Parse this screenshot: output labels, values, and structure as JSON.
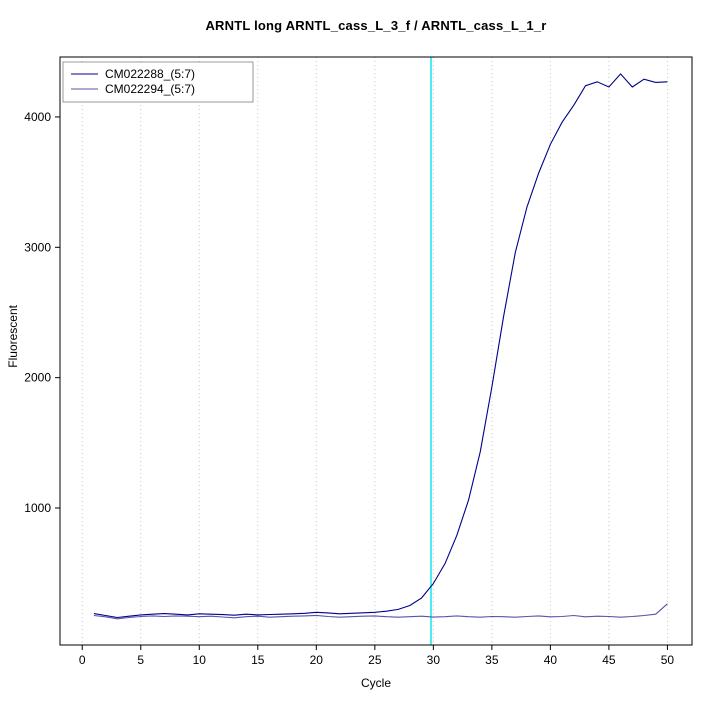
{
  "chart_data": {
    "type": "line",
    "title": "ARNTL long ARNTL_cass_L_3_f / ARNTL_cass_L_1_r",
    "xlabel": "Cycle",
    "ylabel": "Fluorescent",
    "xlim": [
      -1.9,
      52.1
    ],
    "ylim": [
      -51,
      4460
    ],
    "x_ticks": [
      0,
      5,
      10,
      15,
      20,
      25,
      30,
      35,
      40,
      45,
      50
    ],
    "y_ticks": [
      1000,
      2000,
      3000,
      4000
    ],
    "grid": "vertical-dotted",
    "grid_color": "#C8C8C8",
    "legend_position": "top-left",
    "threshold_line": {
      "x": 29.8,
      "color": "#00E5EE"
    },
    "x": [
      1,
      2,
      3,
      4,
      5,
      6,
      7,
      8,
      9,
      10,
      11,
      12,
      13,
      14,
      15,
      16,
      17,
      18,
      19,
      20,
      21,
      22,
      23,
      24,
      25,
      26,
      27,
      28,
      29,
      30,
      31,
      32,
      33,
      34,
      35,
      36,
      37,
      38,
      39,
      40,
      41,
      42,
      43,
      44,
      45,
      46,
      47,
      48,
      49,
      50
    ],
    "series": [
      {
        "name": "CM022288_(5:7)",
        "color": "#00008B",
        "values": [
          190,
          175,
          160,
          170,
          180,
          185,
          190,
          185,
          180,
          188,
          185,
          182,
          178,
          185,
          180,
          183,
          185,
          188,
          192,
          200,
          195,
          188,
          192,
          196,
          200,
          208,
          222,
          252,
          310,
          420,
          575,
          790,
          1060,
          1430,
          1930,
          2470,
          2960,
          3310,
          3570,
          3790,
          3960,
          4090,
          4240,
          4270,
          4230,
          4330,
          4230,
          4290,
          4265,
          4270
        ]
      },
      {
        "name": "CM022294_(5:7)",
        "color": "#5555AA",
        "values": [
          175,
          165,
          150,
          160,
          168,
          172,
          168,
          172,
          170,
          166,
          170,
          164,
          158,
          166,
          170,
          162,
          166,
          170,
          172,
          176,
          168,
          162,
          166,
          170,
          172,
          166,
          162,
          166,
          170,
          163,
          166,
          172,
          166,
          162,
          168,
          166,
          162,
          168,
          172,
          165,
          168,
          175,
          165,
          170,
          168,
          162,
          168,
          175,
          185,
          265
        ]
      }
    ]
  }
}
